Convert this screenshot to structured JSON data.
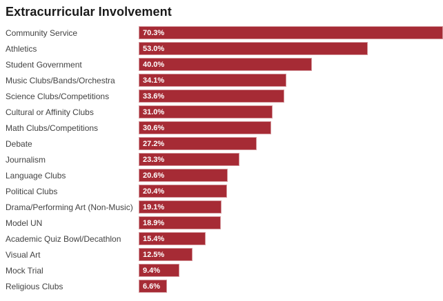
{
  "chart_data": {
    "type": "bar",
    "orientation": "horizontal",
    "title": "Extracurricular Involvement",
    "categories": [
      "Community Service",
      "Athletics",
      "Student Government",
      "Music Clubs/Bands/Orchestra",
      "Science Clubs/Competitions",
      "Cultural or Affinity Clubs",
      "Math Clubs/Competitions",
      "Debate",
      "Journalism",
      "Language Clubs",
      "Political Clubs",
      "Drama/Performing Art (Non-Music)",
      "Model UN",
      "Academic Quiz Bowl/Decathlon",
      "Visual Art",
      "Mock Trial",
      "Religious Clubs"
    ],
    "values": [
      70.3,
      53.0,
      40.0,
      34.1,
      33.6,
      31.0,
      30.6,
      27.2,
      23.3,
      20.6,
      20.4,
      19.1,
      18.9,
      15.4,
      12.5,
      9.4,
      6.6
    ],
    "value_labels": [
      "70.3%",
      "53.0%",
      "40.0%",
      "34.1%",
      "33.6%",
      "31.0%",
      "30.6%",
      "27.2%",
      "23.3%",
      "20.6%",
      "20.4%",
      "19.1%",
      "18.9%",
      "15.4%",
      "12.5%",
      "9.4%",
      "6.6%"
    ],
    "xlabel": "",
    "ylabel": "",
    "xlim": [
      0,
      70.3
    ],
    "grid": false,
    "legend": "none",
    "value_label_position": "inside-left",
    "bar_color": "#A62B35",
    "title_color": "#1A1A1A",
    "category_label_color": "#424242",
    "value_label_color": "#FFFFFF"
  }
}
